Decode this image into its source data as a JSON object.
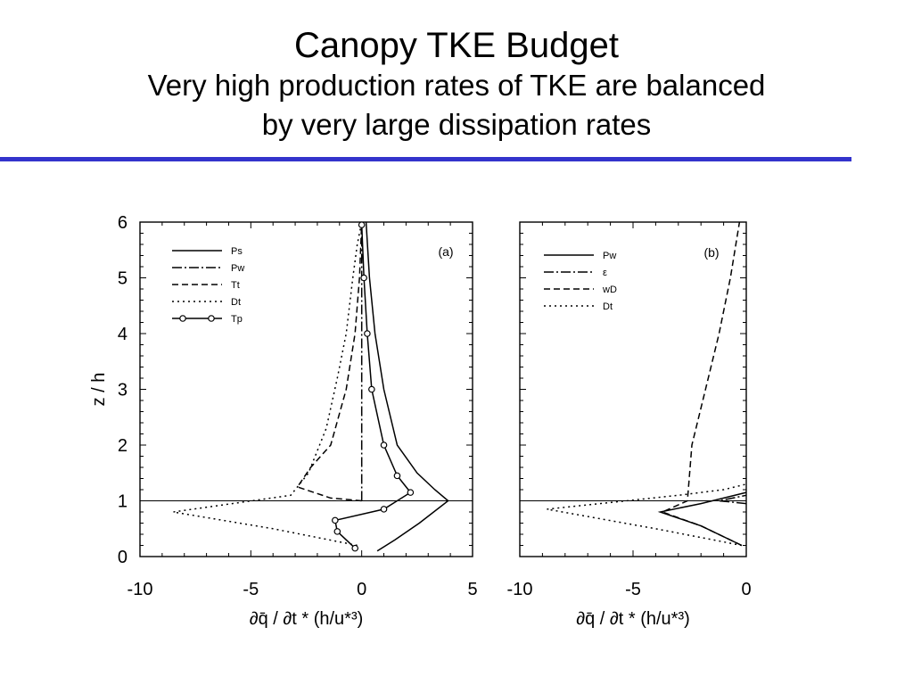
{
  "slide": {
    "title": "Canopy TKE Budget",
    "subtitle_line1": "Very high production rates of TKE are balanced",
    "subtitle_line2": "by very large dissipation rates",
    "rule_color": "#3333cc"
  },
  "chart_data": [
    {
      "type": "line",
      "panel_label": "(a)",
      "xlabel": "∂q̄ / ∂t * (h/u*³)",
      "ylabel": "z / h",
      "xlim": [
        -10,
        5
      ],
      "ylim": [
        0,
        6
      ],
      "xticks": [
        -10,
        -5,
        0,
        5
      ],
      "yticks": [
        0,
        1,
        2,
        3,
        4,
        5,
        6
      ],
      "reference_line_y": 1,
      "legend": "top-left",
      "series": [
        {
          "name": "Ps",
          "style": "solid",
          "points": [
            [
              0.7,
              0.1
            ],
            [
              1.5,
              0.3
            ],
            [
              2.6,
              0.6
            ],
            [
              3.9,
              1.0
            ],
            [
              3.3,
              1.2
            ],
            [
              2.5,
              1.5
            ],
            [
              1.6,
              2.0
            ],
            [
              1.0,
              3.0
            ],
            [
              0.6,
              4.0
            ],
            [
              0.35,
              5.0
            ],
            [
              0.2,
              6.0
            ]
          ]
        },
        {
          "name": "Pw",
          "style": "dashdot",
          "points": [
            [
              0.0,
              1.0
            ],
            [
              0.0,
              6.0
            ]
          ]
        },
        {
          "name": "Tt",
          "style": "dashed",
          "points": [
            [
              0.0,
              1.0
            ],
            [
              -1.4,
              1.05
            ],
            [
              -2.9,
              1.25
            ],
            [
              -2.3,
              1.6
            ],
            [
              -1.4,
              2.0
            ],
            [
              -0.7,
              3.0
            ],
            [
              -0.3,
              4.0
            ],
            [
              -0.1,
              5.0
            ],
            [
              0.0,
              6.0
            ]
          ]
        },
        {
          "name": "Dt",
          "style": "dotted",
          "points": [
            [
              -0.2,
              0.2
            ],
            [
              -4.0,
              0.5
            ],
            [
              -8.5,
              0.8
            ],
            [
              -3.2,
              1.1
            ],
            [
              -2.4,
              1.5
            ],
            [
              -1.6,
              2.3
            ],
            [
              -1.1,
              3.2
            ],
            [
              -0.7,
              4.0
            ],
            [
              -0.4,
              5.0
            ],
            [
              -0.2,
              5.6
            ],
            [
              0.0,
              6.0
            ]
          ]
        },
        {
          "name": "Tp",
          "style": "solid-circles",
          "points": [
            [
              -0.3,
              0.15
            ],
            [
              -1.1,
              0.45
            ],
            [
              -1.2,
              0.65
            ],
            [
              1.0,
              0.85
            ],
            [
              2.2,
              1.15
            ],
            [
              1.6,
              1.45
            ],
            [
              1.0,
              2.0
            ],
            [
              0.45,
              3.0
            ],
            [
              0.25,
              4.0
            ],
            [
              0.1,
              5.0
            ],
            [
              0.0,
              5.95
            ]
          ]
        }
      ]
    },
    {
      "type": "line",
      "panel_label": "(b)",
      "xlabel": "∂q̄ / ∂t * (h/u*³)",
      "ylabel": "",
      "xlim": [
        -10,
        0
      ],
      "ylim": [
        0,
        6
      ],
      "xticks": [
        -10,
        -5,
        0
      ],
      "yticks": [
        0,
        1,
        2,
        3,
        4,
        5,
        6
      ],
      "reference_line_y": 1,
      "legend": "top-left",
      "series": [
        {
          "name": "Pw",
          "style": "solid",
          "points": [
            [
              -0.2,
              0.2
            ],
            [
              -2.0,
              0.55
            ],
            [
              -3.8,
              0.8
            ],
            [
              -2.0,
              0.95
            ],
            [
              0.0,
              1.15
            ]
          ]
        },
        {
          "name": "ε",
          "style": "dashdot",
          "points": [
            [
              0.0,
              0.95
            ],
            [
              -1.2,
              1.0
            ],
            [
              0.0,
              1.1
            ]
          ]
        },
        {
          "name": "wD",
          "style": "dashed",
          "points": [
            [
              -0.2,
              0.2
            ],
            [
              -2.0,
              0.55
            ],
            [
              -3.7,
              0.8
            ],
            [
              -2.6,
              1.0
            ],
            [
              -2.5,
              1.5
            ],
            [
              -2.4,
              2.0
            ],
            [
              -1.8,
              3.0
            ],
            [
              -1.2,
              4.0
            ],
            [
              -0.7,
              5.0
            ],
            [
              -0.3,
              6.0
            ]
          ]
        },
        {
          "name": "Dt",
          "style": "dotted",
          "points": [
            [
              -0.2,
              0.2
            ],
            [
              -4.0,
              0.5
            ],
            [
              -8.8,
              0.85
            ],
            [
              -3.0,
              1.1
            ],
            [
              -1.0,
              1.2
            ],
            [
              0.0,
              1.3
            ]
          ]
        }
      ]
    }
  ]
}
